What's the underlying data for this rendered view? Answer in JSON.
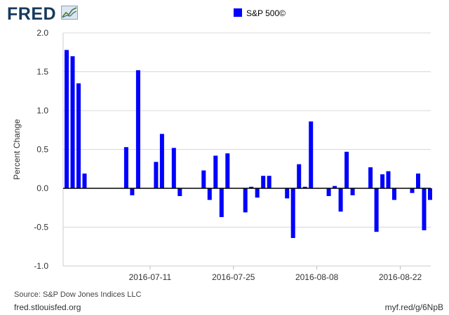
{
  "header": {
    "logo_text": "FRED",
    "legend_label": "S&P 500©"
  },
  "colors": {
    "series": "#0000ff",
    "grid": "#d8d8d8",
    "logo": "#17395c",
    "text": "#333333"
  },
  "footer": {
    "source": "Source: S&P Dow Jones Indices LLC",
    "site": "fred.stlouisfed.org",
    "shortlink": "myf.red/g/6NpB"
  },
  "chart_data": {
    "type": "bar",
    "title": "",
    "ylabel": "Percent Change",
    "xlabel": "",
    "ylim": [
      -1.0,
      2.0
    ],
    "yticks": [
      "-1.0",
      "-0.5",
      "0.0",
      "0.5",
      "1.0",
      "1.5",
      "2.0"
    ],
    "xticks": [
      "2016-07-11",
      "2016-07-25",
      "2016-08-08",
      "2016-08-22"
    ],
    "x_range": [
      "2016-06-27",
      "2016-08-25"
    ],
    "grid": true,
    "legend": "top-center",
    "series": [
      {
        "name": "S&P 500©",
        "color": "#0000ff",
        "points": [
          {
            "date": "2016-06-27",
            "value": 1.78
          },
          {
            "date": "2016-06-28",
            "value": 1.7
          },
          {
            "date": "2016-06-29",
            "value": 1.35
          },
          {
            "date": "2016-06-30",
            "value": 0.19
          },
          {
            "date": "2016-07-07",
            "value": 0.53
          },
          {
            "date": "2016-07-08",
            "value": -0.09
          },
          {
            "date": "2016-07-09",
            "value": 1.52
          },
          {
            "date": "2016-07-12",
            "value": 0.34
          },
          {
            "date": "2016-07-13",
            "value": 0.7
          },
          {
            "date": "2016-07-15",
            "value": 0.52
          },
          {
            "date": "2016-07-16",
            "value": -0.1
          },
          {
            "date": "2016-07-20",
            "value": 0.23
          },
          {
            "date": "2016-07-21",
            "value": -0.15
          },
          {
            "date": "2016-07-22",
            "value": 0.42
          },
          {
            "date": "2016-07-23",
            "value": -0.37
          },
          {
            "date": "2016-07-24",
            "value": 0.45
          },
          {
            "date": "2016-07-27",
            "value": -0.31
          },
          {
            "date": "2016-07-28",
            "value": 0.02
          },
          {
            "date": "2016-07-29",
            "value": -0.12
          },
          {
            "date": "2016-07-30",
            "value": 0.16
          },
          {
            "date": "2016-07-31",
            "value": 0.16
          },
          {
            "date": "2016-08-03",
            "value": -0.13
          },
          {
            "date": "2016-08-04",
            "value": -0.64
          },
          {
            "date": "2016-08-05",
            "value": 0.31
          },
          {
            "date": "2016-08-06",
            "value": 0.02
          },
          {
            "date": "2016-08-07",
            "value": 0.86
          },
          {
            "date": "2016-08-10",
            "value": -0.1
          },
          {
            "date": "2016-08-11",
            "value": 0.03
          },
          {
            "date": "2016-08-12",
            "value": -0.3
          },
          {
            "date": "2016-08-13",
            "value": 0.47
          },
          {
            "date": "2016-08-14",
            "value": -0.09
          },
          {
            "date": "2016-08-17",
            "value": 0.27
          },
          {
            "date": "2016-08-18",
            "value": -0.56
          },
          {
            "date": "2016-08-19",
            "value": 0.18
          },
          {
            "date": "2016-08-20",
            "value": 0.22
          },
          {
            "date": "2016-08-21",
            "value": -0.15
          },
          {
            "date": "2016-08-24",
            "value": -0.06
          },
          {
            "date": "2016-08-25",
            "value": 0.19
          },
          {
            "date": "2016-08-26",
            "value": -0.54
          },
          {
            "date": "2016-08-27",
            "value": -0.15
          }
        ]
      }
    ]
  }
}
